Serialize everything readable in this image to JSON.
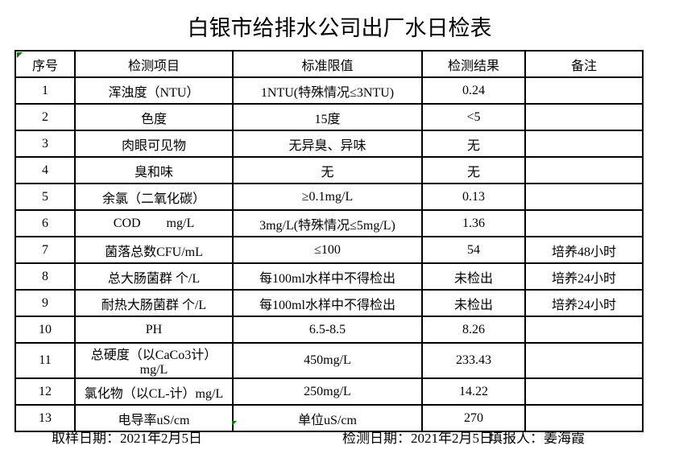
{
  "title": "白银市给排水公司出厂水日检表",
  "colors": {
    "grid": "#000000",
    "text": "#000000",
    "error_indicator_green": "#007700",
    "background": "#ffffff"
  },
  "table": {
    "headers": [
      "序号",
      "检测项目",
      "标准限值",
      "检测结果",
      "备注"
    ],
    "rows": [
      {
        "no": "1",
        "item": "浑浊度（NTU）",
        "limit": "1NTU(特殊情况≤3NTU)",
        "result": "0.24",
        "note": ""
      },
      {
        "no": "2",
        "item": "色度",
        "limit": "15度",
        "result": "<5",
        "note": ""
      },
      {
        "no": "3",
        "item": "肉眼可见物",
        "limit": "无异臭、异味",
        "result": "无",
        "note": ""
      },
      {
        "no": "4",
        "item": "臭和味",
        "limit": "无",
        "result": "无",
        "note": ""
      },
      {
        "no": "5",
        "item": "余氯（二氧化碳）",
        "limit": "≥0.1mg/L",
        "result": "0.13",
        "note": ""
      },
      {
        "no": "6",
        "item": "COD        mg/L",
        "limit": "3mg/L(特殊情况≤5mg/L)",
        "result": "1.36",
        "note": ""
      },
      {
        "no": "7",
        "item": "菌落总数CFU/mL",
        "limit": "≤100",
        "result": "54",
        "note": "培养48小时"
      },
      {
        "no": "8",
        "item": "总大肠菌群 个/L",
        "limit": "每100ml水样中不得检出",
        "result": "未检出",
        "note": "培养24小时"
      },
      {
        "no": "9",
        "item": "耐热大肠菌群 个/L",
        "limit": "每100ml水样中不得检出",
        "result": "未检出",
        "note": "培养24小时"
      },
      {
        "no": "10",
        "item": "PH",
        "limit": "6.5-8.5",
        "result": "8.26",
        "note": ""
      },
      {
        "no": "11",
        "item": "总硬度（以CaCo3计）mg/L",
        "limit": "450mg/L",
        "result": "233.43",
        "note": ""
      },
      {
        "no": "12",
        "item": "氯化物（以CL-计）mg/L",
        "limit": "250mg/L",
        "result": "14.22",
        "note": ""
      },
      {
        "no": "13",
        "item": "电导率uS/cm",
        "limit": "单位uS/cm",
        "result": "270",
        "note": ""
      }
    ]
  },
  "footer": {
    "sampling_date": "取样日期：2021年2月5日",
    "testing_date": "检测日期：2021年2月5日",
    "reporter": "填报人：姜海霞"
  }
}
